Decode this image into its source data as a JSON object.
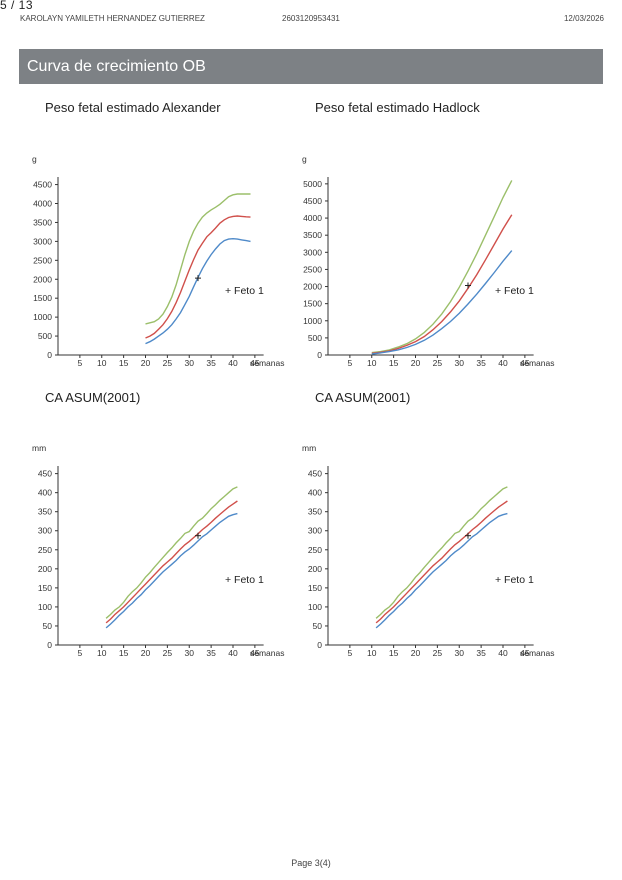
{
  "header": {
    "pager": "5 / 13",
    "patient_name": "KAROLAYN YAMILETH HERNANDEZ GUTIERREZ",
    "patient_id": "2603120953431",
    "date": "12/03/2026"
  },
  "section": {
    "title": "Curva de crecimiento OB"
  },
  "footer": {
    "page": "Page 3(4)"
  },
  "colors": {
    "p90": "#9bbf6a",
    "p50": "#d0504b",
    "p10": "#4f8ac9",
    "axis": "#333333",
    "header_bar": "#7d8185"
  },
  "chart_data": [
    {
      "type": "line",
      "title": "Peso fetal estimado Alexander",
      "ylabel": "g",
      "xlabel": "semanas",
      "xlim": [
        0,
        47
      ],
      "ylim": [
        0,
        4700
      ],
      "x_ticks": [
        5,
        10,
        15,
        20,
        25,
        30,
        35,
        40,
        45
      ],
      "y_ticks": [
        0,
        500,
        1000,
        1500,
        2000,
        2500,
        3000,
        3500,
        4000,
        4500
      ],
      "legend": "+ Feto 1",
      "legend_position": "right",
      "marker": {
        "x": 32,
        "y": 2030
      },
      "series": [
        {
          "color_key": "p90",
          "x": [
            20,
            21,
            22,
            23,
            24,
            25,
            26,
            27,
            28,
            29,
            30,
            31,
            32,
            33,
            34,
            35,
            36,
            37,
            38,
            39,
            40,
            41,
            42,
            43,
            44
          ],
          "y": [
            820,
            850,
            880,
            950,
            1080,
            1280,
            1530,
            1850,
            2250,
            2650,
            3000,
            3270,
            3480,
            3640,
            3750,
            3830,
            3900,
            3980,
            4080,
            4180,
            4230,
            4250,
            4250,
            4250,
            4250
          ]
        },
        {
          "color_key": "p50",
          "x": [
            20,
            21,
            22,
            23,
            24,
            25,
            26,
            27,
            28,
            29,
            30,
            31,
            32,
            33,
            34,
            35,
            36,
            37,
            38,
            39,
            40,
            41,
            42,
            43,
            44
          ],
          "y": [
            450,
            500,
            570,
            680,
            800,
            960,
            1150,
            1380,
            1650,
            1950,
            2250,
            2520,
            2770,
            2950,
            3120,
            3230,
            3350,
            3480,
            3570,
            3630,
            3660,
            3670,
            3660,
            3650,
            3640
          ]
        },
        {
          "color_key": "p10",
          "x": [
            20,
            21,
            22,
            23,
            24,
            25,
            26,
            27,
            28,
            29,
            30,
            31,
            32,
            33,
            34,
            35,
            36,
            37,
            38,
            39,
            40,
            41,
            42,
            43,
            44
          ],
          "y": [
            300,
            350,
            420,
            500,
            580,
            680,
            800,
            950,
            1120,
            1330,
            1550,
            1800,
            2050,
            2280,
            2480,
            2650,
            2800,
            2930,
            3020,
            3060,
            3070,
            3060,
            3040,
            3020,
            3000
          ]
        }
      ]
    },
    {
      "type": "line",
      "title": "Peso fetal estimado Hadlock",
      "ylabel": "g",
      "xlabel": "semanas",
      "xlim": [
        0,
        47
      ],
      "ylim": [
        0,
        5200
      ],
      "x_ticks": [
        5,
        10,
        15,
        20,
        25,
        30,
        35,
        40,
        45
      ],
      "y_ticks": [
        0,
        500,
        1000,
        1500,
        2000,
        2500,
        3000,
        3500,
        4000,
        4500,
        5000
      ],
      "legend": "+ Feto 1",
      "legend_position": "right",
      "marker": {
        "x": 32,
        "y": 2030
      },
      "series": [
        {
          "color_key": "p90",
          "x": [
            10,
            12,
            14,
            16,
            18,
            20,
            22,
            24,
            26,
            28,
            30,
            32,
            34,
            36,
            38,
            40,
            42
          ],
          "y": [
            70,
            100,
            150,
            230,
            330,
            470,
            660,
            900,
            1200,
            1560,
            1980,
            2450,
            2960,
            3500,
            4050,
            4600,
            5100
          ]
        },
        {
          "color_key": "p50",
          "x": [
            10,
            12,
            14,
            16,
            18,
            20,
            22,
            24,
            26,
            28,
            30,
            32,
            34,
            36,
            38,
            40,
            42
          ],
          "y": [
            50,
            80,
            120,
            190,
            280,
            390,
            540,
            740,
            980,
            1260,
            1580,
            1950,
            2350,
            2780,
            3230,
            3680,
            4100
          ]
        },
        {
          "color_key": "p10",
          "x": [
            10,
            12,
            14,
            16,
            18,
            20,
            22,
            24,
            26,
            28,
            30,
            32,
            34,
            36,
            38,
            40,
            42
          ],
          "y": [
            30,
            60,
            100,
            150,
            220,
            310,
            430,
            580,
            770,
            980,
            1220,
            1490,
            1780,
            2090,
            2410,
            2740,
            3050
          ]
        }
      ]
    },
    {
      "type": "line",
      "title": "CA ASUM(2001)",
      "ylabel": "mm",
      "xlabel": "semanas",
      "xlim": [
        0,
        47
      ],
      "ylim": [
        0,
        470
      ],
      "x_ticks": [
        5,
        10,
        15,
        20,
        25,
        30,
        35,
        40,
        45
      ],
      "y_ticks": [
        0,
        50,
        100,
        150,
        200,
        250,
        300,
        350,
        400,
        450
      ],
      "legend": "+ Feto 1",
      "legend_position": "right",
      "marker": {
        "x": 32,
        "y": 287
      },
      "series": [
        {
          "color_key": "p90",
          "x": [
            11,
            12,
            13,
            14,
            15,
            16,
            17,
            18,
            19,
            20,
            21,
            22,
            23,
            24,
            25,
            26,
            27,
            28,
            29,
            30,
            31,
            32,
            33,
            34,
            35,
            36,
            37,
            38,
            39,
            40,
            41
          ],
          "y": [
            70,
            80,
            92,
            100,
            112,
            128,
            140,
            150,
            163,
            178,
            190,
            204,
            217,
            230,
            243,
            255,
            268,
            280,
            293,
            298,
            312,
            325,
            333,
            345,
            358,
            368,
            380,
            390,
            400,
            410,
            415
          ]
        },
        {
          "color_key": "p50",
          "x": [
            11,
            12,
            13,
            14,
            15,
            16,
            17,
            18,
            19,
            20,
            21,
            22,
            23,
            24,
            25,
            26,
            27,
            28,
            29,
            30,
            31,
            32,
            33,
            34,
            35,
            36,
            37,
            38,
            39,
            40,
            41
          ],
          "y": [
            58,
            68,
            80,
            90,
            100,
            112,
            124,
            136,
            148,
            160,
            172,
            184,
            196,
            208,
            218,
            228,
            240,
            252,
            263,
            272,
            282,
            292,
            303,
            312,
            322,
            333,
            343,
            353,
            362,
            370,
            378
          ]
        },
        {
          "color_key": "p10",
          "x": [
            11,
            12,
            13,
            14,
            15,
            16,
            17,
            18,
            19,
            20,
            21,
            22,
            23,
            24,
            25,
            26,
            27,
            28,
            29,
            30,
            31,
            32,
            33,
            34,
            35,
            36,
            37,
            38,
            39,
            40,
            41
          ],
          "y": [
            45,
            55,
            66,
            78,
            88,
            100,
            110,
            122,
            132,
            145,
            156,
            168,
            180,
            192,
            202,
            212,
            222,
            234,
            244,
            252,
            262,
            273,
            284,
            292,
            302,
            312,
            322,
            330,
            338,
            342,
            345
          ]
        }
      ]
    },
    {
      "type": "line",
      "title": "CA ASUM(2001)",
      "ylabel": "mm",
      "xlabel": "semanas",
      "xlim": [
        0,
        47
      ],
      "ylim": [
        0,
        470
      ],
      "x_ticks": [
        5,
        10,
        15,
        20,
        25,
        30,
        35,
        40,
        45
      ],
      "y_ticks": [
        0,
        50,
        100,
        150,
        200,
        250,
        300,
        350,
        400,
        450
      ],
      "legend": "+ Feto 1",
      "legend_position": "right",
      "marker": {
        "x": 32,
        "y": 287
      },
      "series": [
        {
          "color_key": "p90",
          "x": [
            11,
            12,
            13,
            14,
            15,
            16,
            17,
            18,
            19,
            20,
            21,
            22,
            23,
            24,
            25,
            26,
            27,
            28,
            29,
            30,
            31,
            32,
            33,
            34,
            35,
            36,
            37,
            38,
            39,
            40,
            41
          ],
          "y": [
            70,
            80,
            92,
            100,
            112,
            128,
            140,
            150,
            163,
            178,
            190,
            204,
            217,
            230,
            243,
            255,
            268,
            280,
            293,
            298,
            312,
            325,
            333,
            345,
            358,
            368,
            380,
            390,
            400,
            410,
            415
          ]
        },
        {
          "color_key": "p50",
          "x": [
            11,
            12,
            13,
            14,
            15,
            16,
            17,
            18,
            19,
            20,
            21,
            22,
            23,
            24,
            25,
            26,
            27,
            28,
            29,
            30,
            31,
            32,
            33,
            34,
            35,
            36,
            37,
            38,
            39,
            40,
            41
          ],
          "y": [
            58,
            68,
            80,
            90,
            100,
            112,
            124,
            136,
            148,
            160,
            172,
            184,
            196,
            208,
            218,
            228,
            240,
            252,
            263,
            272,
            282,
            292,
            303,
            312,
            322,
            333,
            343,
            353,
            362,
            370,
            378
          ]
        },
        {
          "color_key": "p10",
          "x": [
            11,
            12,
            13,
            14,
            15,
            16,
            17,
            18,
            19,
            20,
            21,
            22,
            23,
            24,
            25,
            26,
            27,
            28,
            29,
            30,
            31,
            32,
            33,
            34,
            35,
            36,
            37,
            38,
            39,
            40,
            41
          ],
          "y": [
            45,
            55,
            66,
            78,
            88,
            100,
            110,
            122,
            132,
            145,
            156,
            168,
            180,
            192,
            202,
            212,
            222,
            234,
            244,
            252,
            262,
            273,
            284,
            292,
            302,
            312,
            322,
            330,
            338,
            342,
            345
          ]
        }
      ]
    }
  ]
}
